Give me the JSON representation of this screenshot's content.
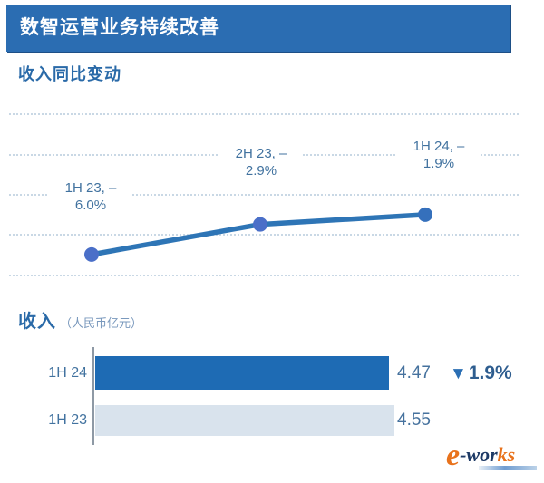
{
  "header": {
    "title": "数智运营业务持续改善"
  },
  "line_section": {
    "heading": "收入同比变动"
  },
  "bar_section": {
    "heading": "收入",
    "unit": "（人民币亿元）"
  },
  "watermark": {
    "part_e": "e",
    "part_wor": "-wor",
    "part_ks": "ks"
  },
  "chart_data": [
    {
      "type": "line",
      "title": "收入同比变动",
      "x": [
        "1H 23",
        "2H 23",
        "1H 24"
      ],
      "values": [
        -6.0,
        -2.9,
        -1.9
      ],
      "unit": "%",
      "labels": [
        {
          "top": "1H 23, –",
          "bottom": "6.0%"
        },
        {
          "top": "2H 23, –",
          "bottom": "2.9%"
        },
        {
          "top": "1H 24, –",
          "bottom": "1.9%"
        }
      ],
      "grid": "horizontal-dotted",
      "legend": "none",
      "line_color": "#2E75B6",
      "marker_colors": [
        "#4A6FC8",
        "#4A6FC8",
        "#3570BC"
      ]
    },
    {
      "type": "bar",
      "orientation": "horizontal",
      "title": "收入（人民币亿元）",
      "categories": [
        "1H 24",
        "1H 23"
      ],
      "values": [
        4.47,
        4.55
      ],
      "value_labels": [
        "4.47",
        "4.55"
      ],
      "delta": {
        "icon": "▼",
        "value": "1.9%"
      },
      "bar_colors": [
        "#1E6BB4",
        "#D9E3ED"
      ],
      "xlim": [
        0,
        5
      ]
    }
  ]
}
